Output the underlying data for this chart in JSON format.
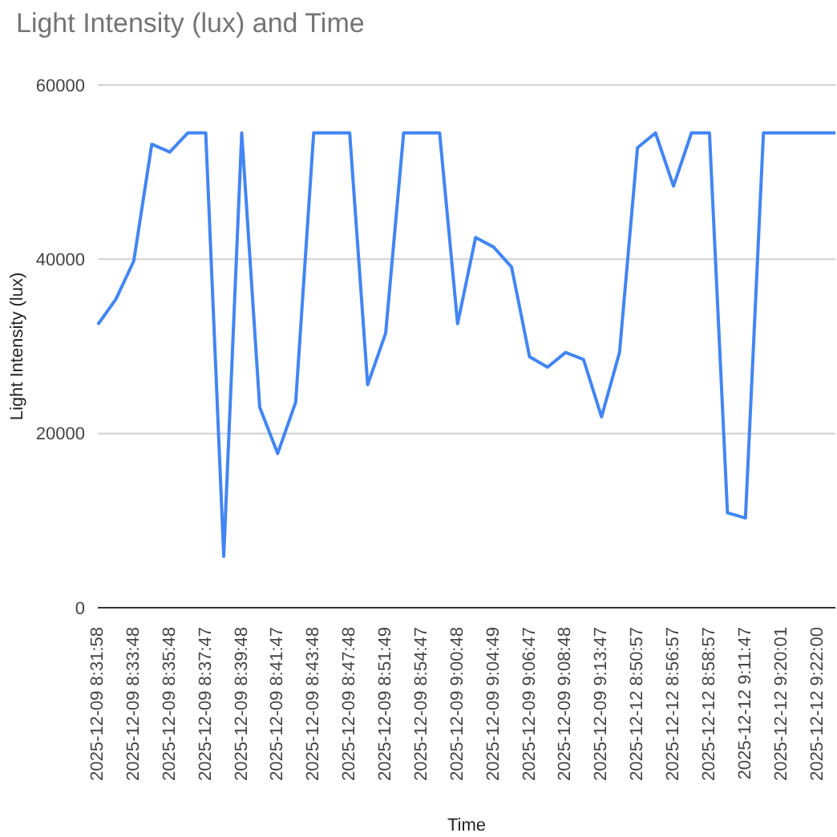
{
  "chart_data": {
    "type": "line",
    "title": "Light Intensity (lux) and Time",
    "xlabel": "Time",
    "ylabel": "Light Intensity (lux)",
    "categories": [
      "2025-12-09 8:31:58",
      null,
      "2025-12-09 8:33:48",
      null,
      "2025-12-09 8:35:48",
      null,
      "2025-12-09 8:37:47",
      null,
      "2025-12-09 8:39:48",
      null,
      "2025-12-09 8:41:47",
      null,
      "2025-12-09 8:43:48",
      null,
      "2025-12-09 8:47:48",
      null,
      "2025-12-09 8:51:49",
      null,
      "2025-12-09 8:54:47",
      null,
      "2025-12-09 9:00:48",
      null,
      "2025-12-09 9:04:49",
      null,
      "2025-12-09 9:06:47",
      null,
      "2025-12-09 9:08:48",
      null,
      "2025-12-09 9:13:47",
      null,
      "2025-12-12 8:50:57",
      null,
      "2025-12-12 8:56:57",
      null,
      "2025-12-12 8:58:57",
      null,
      "2025-12-12 9:11:47",
      null,
      "2025-12-12 9:20:01",
      null,
      "2025-12-12 9:22:00",
      null
    ],
    "series": [
      {
        "color": "#4285f4",
        "values": [
          32500,
          35400,
          39800,
          53200,
          52300,
          54500,
          54500,
          5900,
          54500,
          23000,
          17700,
          23600,
          54500,
          54500,
          54500,
          25600,
          31500,
          54500,
          54500,
          54500,
          32600,
          42500,
          41400,
          39100,
          28800,
          27600,
          29300,
          28500,
          21900,
          29300,
          52800,
          54500,
          48400,
          54500,
          54500,
          10900,
          10300,
          54500,
          54500,
          54500,
          54500,
          54500
        ]
      }
    ],
    "ylim": [
      0,
      60000
    ],
    "yticks": [
      0,
      20000,
      40000,
      60000
    ],
    "grid": "y",
    "legend": false,
    "marker": "none",
    "line_style": "solid"
  }
}
